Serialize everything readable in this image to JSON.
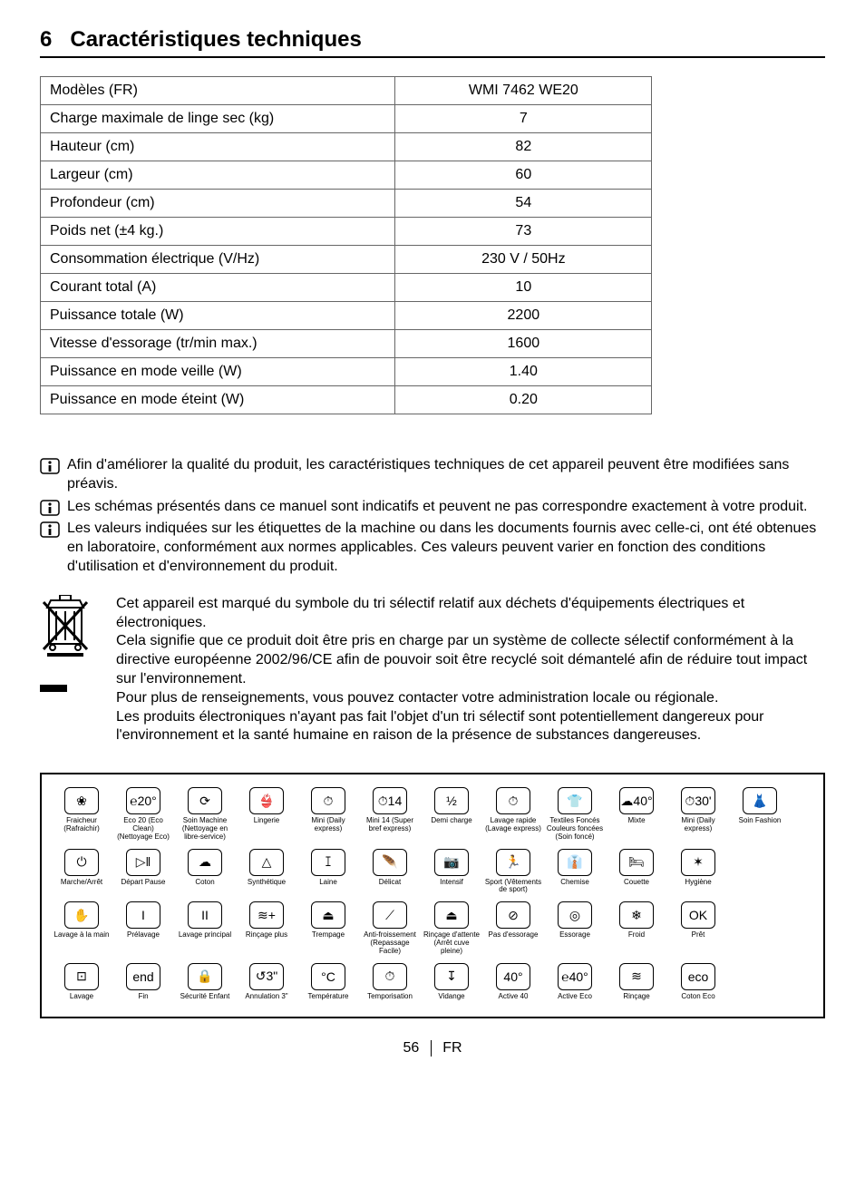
{
  "heading": {
    "number": "6",
    "title": "Caractéristiques techniques"
  },
  "spec_table": {
    "rows": [
      {
        "label": "Modèles (FR)",
        "value": "WMI 7462 WE20"
      },
      {
        "label": "Charge maximale de linge sec (kg)",
        "value": "7"
      },
      {
        "label": "Hauteur (cm)",
        "value": "82"
      },
      {
        "label": "Largeur (cm)",
        "value": "60"
      },
      {
        "label": "Profondeur (cm)",
        "value": "54"
      },
      {
        "label": "Poids net (±4 kg.)",
        "value": "73"
      },
      {
        "label": "Consommation électrique (V/Hz)",
        "value": "230 V / 50Hz"
      },
      {
        "label": "Courant total (A)",
        "value": "10"
      },
      {
        "label": "Puissance totale (W)",
        "value": "2200"
      },
      {
        "label": "Vitesse d'essorage (tr/min max.)",
        "value": "1600"
      },
      {
        "label": "Puissance en mode veille (W)",
        "value": "1.40"
      },
      {
        "label": "Puissance en mode éteint (W)",
        "value": "0.20"
      }
    ]
  },
  "info_notes": [
    "Afin d'améliorer la qualité du produit, les caractéristiques techniques de cet appareil peuvent être modifiées sans préavis.",
    "Les schémas présentés dans ce manuel sont indicatifs et peuvent ne pas correspondre exactement à votre produit.",
    "Les valeurs indiquées sur les étiquettes de la machine ou dans les documents fournis avec celle-ci, ont été obtenues en laboratoire, conformément aux normes applicables. Ces valeurs peuvent varier en fonction des conditions d'utilisation et d'environnement du produit."
  ],
  "weee_text": "Cet appareil est marqué du symbole du tri sélectif relatif aux déchets d'équipements électriques et électroniques.\nCela signifie que ce produit doit être pris en charge par un système de collecte sélectif conformément à la directive européenne 2002/96/CE afin de pouvoir soit être recyclé soit démantelé afin de réduire tout impact sur l'environnement.\nPour plus de renseignements, vous pouvez contacter votre administration locale ou régionale.\nLes produits électroniques n'ayant pas fait l'objet d'un tri sélectif sont potentiellement dangereux pour l'environnement et la santé humaine en raison de la présence de substances dangereuses.",
  "symbols": {
    "rows": [
      [
        {
          "glyph": "❀",
          "label": "Fraicheur (Rafraichir)"
        },
        {
          "glyph": "℮20°",
          "label": "Eco 20 (Eco Clean) (Nettoyage Eco)"
        },
        {
          "glyph": "⟳",
          "label": "Soin Machine (Nettoyage en libre-service)"
        },
        {
          "glyph": "👙",
          "label": "Lingerie"
        },
        {
          "glyph": "⏱",
          "label": "Mini (Daily express)"
        },
        {
          "glyph": "⏱14",
          "label": "Mini 14 (Super bref express)"
        },
        {
          "glyph": "½",
          "label": "Demi charge"
        },
        {
          "glyph": "⏱",
          "label": "Lavage rapide (Lavage express)"
        },
        {
          "glyph": "👕",
          "label": "Textiles Foncés Couleurs foncées (Soin foncé)"
        },
        {
          "glyph": "☁40°",
          "label": "Mixte"
        },
        {
          "glyph": "⏱30'",
          "label": "Mini (Daily express)"
        },
        {
          "glyph": "👗",
          "label": "Soin Fashion"
        }
      ],
      [
        {
          "glyph": "⏻",
          "label": "Marche/Arrêt"
        },
        {
          "glyph": "▷‖",
          "label": "Départ Pause"
        },
        {
          "glyph": "☁",
          "label": "Coton"
        },
        {
          "glyph": "△",
          "label": "Synthétique"
        },
        {
          "glyph": "ꕯ",
          "label": "Laine"
        },
        {
          "glyph": "🪶",
          "label": "Délicat"
        },
        {
          "glyph": "📷",
          "label": "Intensif"
        },
        {
          "glyph": "🏃",
          "label": "Sport (Vêtements de sport)"
        },
        {
          "glyph": "👔",
          "label": "Chemise"
        },
        {
          "glyph": "🛏",
          "label": "Couette"
        },
        {
          "glyph": "✶",
          "label": "Hygiène"
        }
      ],
      [
        {
          "glyph": "✋",
          "label": "Lavage à la main"
        },
        {
          "glyph": "I",
          "label": "Prélavage"
        },
        {
          "glyph": "II",
          "label": "Lavage principal"
        },
        {
          "glyph": "≋+",
          "label": "Rinçage plus"
        },
        {
          "glyph": "⏏",
          "label": "Trempage"
        },
        {
          "glyph": "⟋",
          "label": "Anti-froissement (Repassage Facile)"
        },
        {
          "glyph": "⏏",
          "label": "Rinçage d'attente (Arrêt cuve pleine)"
        },
        {
          "glyph": "⊘",
          "label": "Pas d'essorage"
        },
        {
          "glyph": "◎",
          "label": "Essorage"
        },
        {
          "glyph": "❄",
          "label": "Froid"
        },
        {
          "glyph": "OK",
          "label": "Prêt"
        }
      ],
      [
        {
          "glyph": "⊡",
          "label": "Lavage"
        },
        {
          "glyph": "end",
          "label": "Fin"
        },
        {
          "glyph": "🔒",
          "label": "Sécurité Enfant"
        },
        {
          "glyph": "↺3\"",
          "label": "Annulation 3\""
        },
        {
          "glyph": "°C",
          "label": "Température"
        },
        {
          "glyph": "⏱",
          "label": "Temporisation"
        },
        {
          "glyph": "↧",
          "label": "Vidange"
        },
        {
          "glyph": "40°",
          "label": "Active 40"
        },
        {
          "glyph": "℮40°",
          "label": "Active Eco"
        },
        {
          "glyph": "≋",
          "label": "Rinçage"
        },
        {
          "glyph": "eco",
          "label": "Coton Eco"
        }
      ]
    ]
  },
  "footer": {
    "page": "56",
    "lang": "FR"
  },
  "colors": {
    "text": "#000000",
    "border": "#666666",
    "bg": "#ffffff"
  }
}
